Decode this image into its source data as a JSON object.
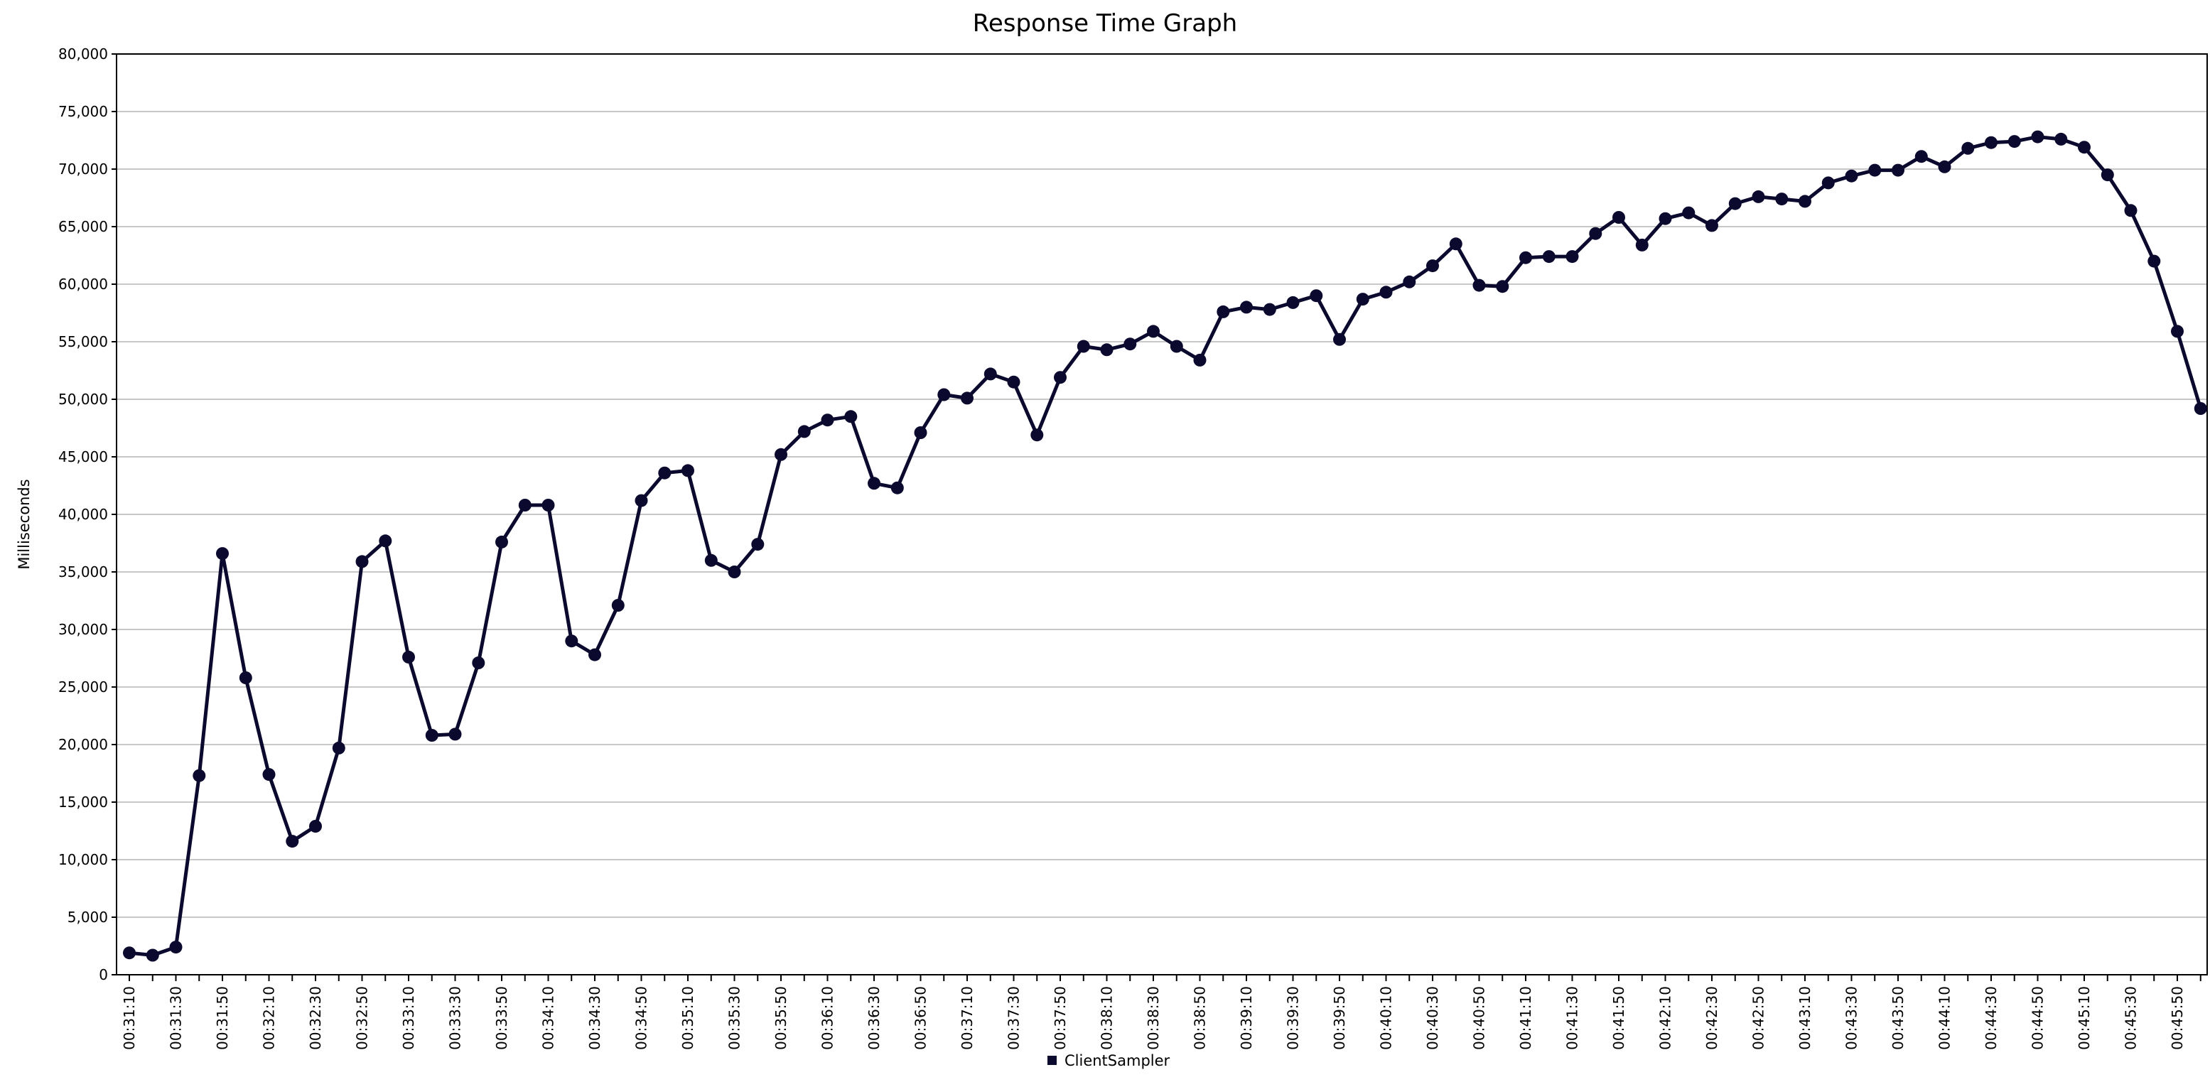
{
  "chart_data": {
    "type": "line",
    "title": "Response Time Graph",
    "ylabel": "Milliseconds",
    "xlabel": "",
    "ylim": [
      0,
      80000
    ],
    "yticks": [
      0,
      5000,
      10000,
      15000,
      20000,
      25000,
      30000,
      35000,
      40000,
      45000,
      50000,
      55000,
      60000,
      65000,
      70000,
      75000,
      80000
    ],
    "ytick_labels": [
      "0",
      "5,000",
      "10,000",
      "15,000",
      "20,000",
      "25,000",
      "30,000",
      "35,000",
      "40,000",
      "45,000",
      "50,000",
      "55,000",
      "60,000",
      "65,000",
      "70,000",
      "75,000",
      "80,000"
    ],
    "xtick_labels": [
      "00:31:10",
      "00:31:30",
      "00:31:50",
      "00:32:10",
      "00:32:30",
      "00:32:50",
      "00:33:10",
      "00:33:30",
      "00:33:50",
      "00:34:10",
      "00:34:30",
      "00:34:50",
      "00:35:10",
      "00:35:30",
      "00:35:50",
      "00:36:10",
      "00:36:30",
      "00:36:50",
      "00:37:10",
      "00:37:30",
      "00:37:50",
      "00:38:10",
      "00:38:30",
      "00:38:50",
      "00:39:10",
      "00:39:30",
      "00:39:50",
      "00:40:10",
      "00:40:30",
      "00:40:50",
      "00:41:10",
      "00:41:30",
      "00:41:50",
      "00:42:10",
      "00:42:30",
      "00:42:50",
      "00:43:10",
      "00:43:30",
      "00:43:50",
      "00:44:10",
      "00:44:30",
      "00:44:50",
      "00:45:10",
      "00:45:30",
      "00:45:50"
    ],
    "grid": true,
    "legend_position": "bottom-center",
    "series": [
      {
        "name": "ClientSampler",
        "color": "#0b0a2e",
        "x": [
          "00:31:10",
          "00:31:20",
          "00:31:30",
          "00:31:40",
          "00:31:50",
          "00:32:00",
          "00:32:10",
          "00:32:20",
          "00:32:30",
          "00:32:40",
          "00:32:50",
          "00:33:00",
          "00:33:10",
          "00:33:20",
          "00:33:30",
          "00:33:40",
          "00:33:50",
          "00:34:00",
          "00:34:10",
          "00:34:20",
          "00:34:30",
          "00:34:40",
          "00:34:50",
          "00:35:00",
          "00:35:10",
          "00:35:20",
          "00:35:30",
          "00:35:40",
          "00:35:50",
          "00:36:00",
          "00:36:10",
          "00:36:20",
          "00:36:30",
          "00:36:40",
          "00:36:50",
          "00:37:00",
          "00:37:10",
          "00:37:20",
          "00:37:30",
          "00:37:40",
          "00:37:50",
          "00:38:00",
          "00:38:10",
          "00:38:20",
          "00:38:30",
          "00:38:40",
          "00:38:50",
          "00:39:00",
          "00:39:10",
          "00:39:20",
          "00:39:30",
          "00:39:40",
          "00:39:50",
          "00:40:00",
          "00:40:10",
          "00:40:20",
          "00:40:30",
          "00:40:40",
          "00:40:50",
          "00:41:00",
          "00:41:10",
          "00:41:20",
          "00:41:30",
          "00:41:40",
          "00:41:50",
          "00:42:00",
          "00:42:10",
          "00:42:20",
          "00:42:30",
          "00:42:40",
          "00:42:50",
          "00:43:00",
          "00:43:10",
          "00:43:20",
          "00:43:30",
          "00:43:40",
          "00:43:50",
          "00:44:00",
          "00:44:10",
          "00:44:20",
          "00:44:30",
          "00:44:40",
          "00:44:50",
          "00:45:00",
          "00:45:10",
          "00:45:20",
          "00:45:30",
          "00:45:40",
          "00:45:50",
          "00:46:00"
        ],
        "values": [
          1900,
          1700,
          2400,
          17300,
          36600,
          25800,
          17400,
          11600,
          12900,
          19700,
          35900,
          37700,
          27600,
          20800,
          20900,
          27100,
          37600,
          40800,
          40800,
          29000,
          27800,
          32100,
          41200,
          43600,
          43800,
          36000,
          35000,
          37400,
          45200,
          47200,
          48200,
          48500,
          42700,
          42300,
          47100,
          50400,
          50100,
          52200,
          51500,
          46900,
          51900,
          54600,
          54300,
          54800,
          55900,
          54600,
          53400,
          57600,
          58000,
          57800,
          58400,
          59000,
          55200,
          58700,
          59300,
          60200,
          61600,
          63500,
          59900,
          59800,
          62300,
          62400,
          62400,
          64400,
          65800,
          63400,
          65700,
          66200,
          65100,
          67000,
          67600,
          67400,
          67200,
          68800,
          69400,
          69900,
          69900,
          71100,
          70200,
          71800,
          72300,
          72400,
          72800,
          72600,
          71900,
          69500,
          66400,
          62000,
          55900,
          49200
        ]
      }
    ]
  }
}
